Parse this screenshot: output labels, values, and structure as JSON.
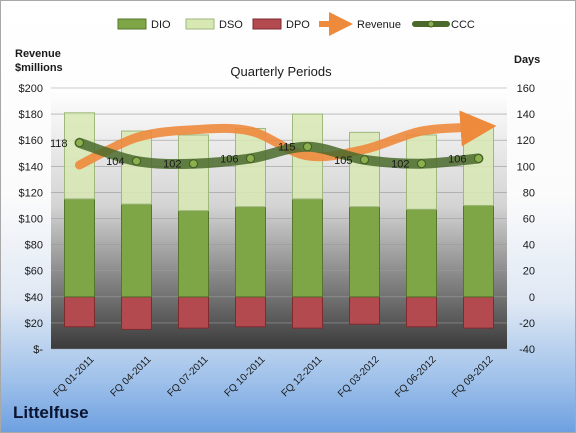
{
  "company": "Littelfuse",
  "chart_data": {
    "type": "bar",
    "title": "Quarterly Periods",
    "left_axis_title": [
      "Revenue",
      "$millions"
    ],
    "right_axis_title": "Days",
    "categories": [
      "FQ 01-2011",
      "FQ 04-2011",
      "FQ 07-2011",
      "FQ 10-2011",
      "FQ 12-2011",
      "FQ 03-2012",
      "FQ 06-2012",
      "FQ 09-2012"
    ],
    "left_ticks": [
      "$-",
      "$20",
      "$40",
      "$60",
      "$80",
      "$100",
      "$120",
      "$140",
      "$160",
      "$180",
      "$200"
    ],
    "right_ticks": [
      "-40",
      "-20",
      "0",
      "20",
      "40",
      "60",
      "80",
      "100",
      "120",
      "140",
      "160"
    ],
    "ylim_left": [
      0,
      200
    ],
    "ylim_right": [
      -40,
      160
    ],
    "series": [
      {
        "name": "DIO",
        "type": "bar",
        "values": [
          75,
          71,
          66,
          69,
          75,
          69,
          67,
          70
        ]
      },
      {
        "name": "DSO",
        "type": "bar",
        "values": [
          66,
          56,
          58,
          60,
          65,
          57,
          57,
          60
        ]
      },
      {
        "name": "DPO",
        "type": "bar",
        "values": [
          -23,
          -25,
          -24,
          -23,
          -24,
          -21,
          -23,
          -24
        ]
      },
      {
        "name": "Revenue",
        "type": "line",
        "values": [
          141,
          162,
          168,
          167,
          148,
          153,
          167,
          170
        ]
      },
      {
        "name": "CCC",
        "type": "line",
        "values": [
          118,
          104,
          102,
          106,
          115,
          105,
          102,
          106
        ]
      }
    ],
    "colors": {
      "DIO": "#7ea646",
      "DSO": "#d7e8b4",
      "DPO": "#b24a4f",
      "Revenue": "#ee8a3c",
      "CCC": "#4a6a2b"
    }
  }
}
